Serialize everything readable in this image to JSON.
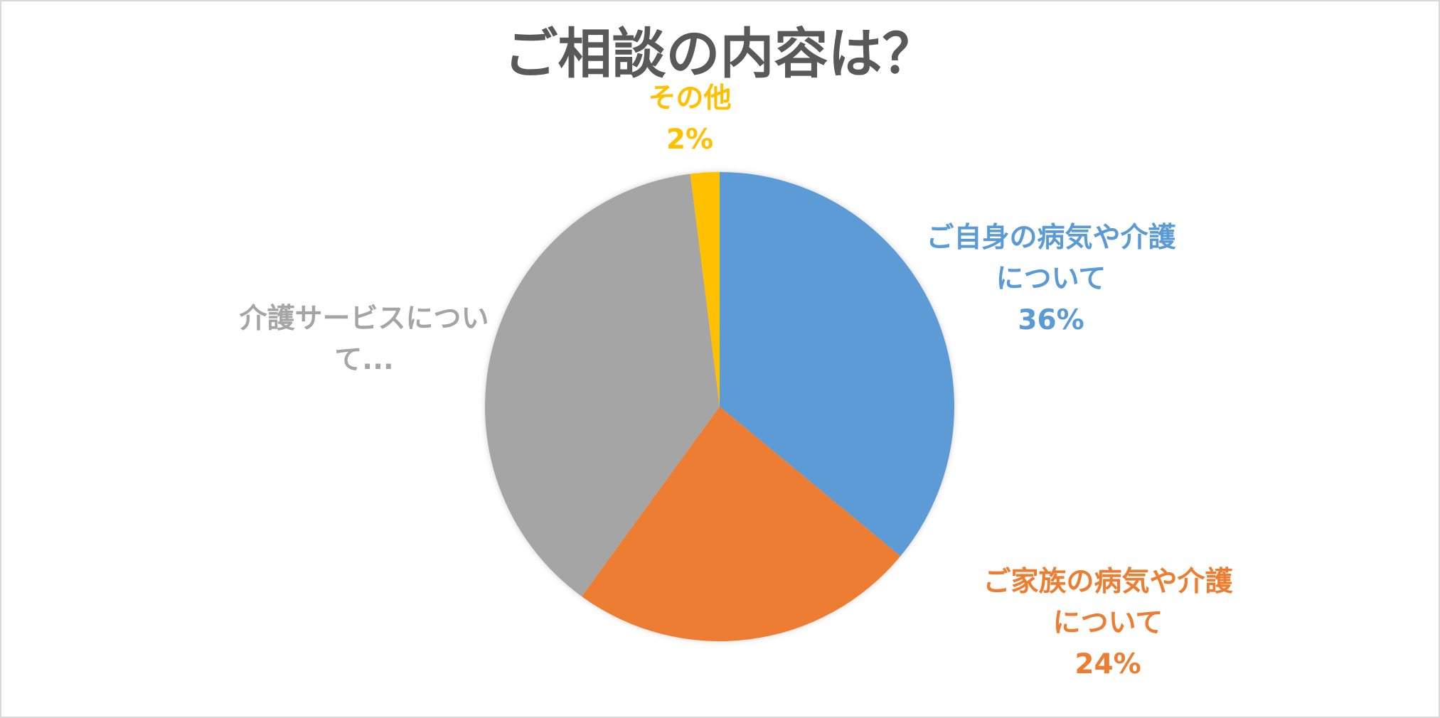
{
  "chart_data": {
    "type": "pie",
    "title": "ご相談の内容は？",
    "slices": [
      {
        "label_lines": [
          "ご自身の病気や介護",
          "について"
        ],
        "value": 36,
        "value_label": "36%",
        "color": "#5b9bd5"
      },
      {
        "label_lines": [
          "ご家族の病気や介護",
          "について"
        ],
        "value": 24,
        "value_label": "24%",
        "color": "#ed7d31"
      },
      {
        "label_lines": [
          "介護サービスについ",
          "て..."
        ],
        "value": 38,
        "value_label": "",
        "color": "#a5a5a5"
      },
      {
        "label_lines": [
          "その他"
        ],
        "value": 2,
        "value_label": "2%",
        "color": "#ffc000"
      }
    ],
    "start_angle_deg": 0,
    "direction": "clockwise",
    "legend": "none"
  }
}
